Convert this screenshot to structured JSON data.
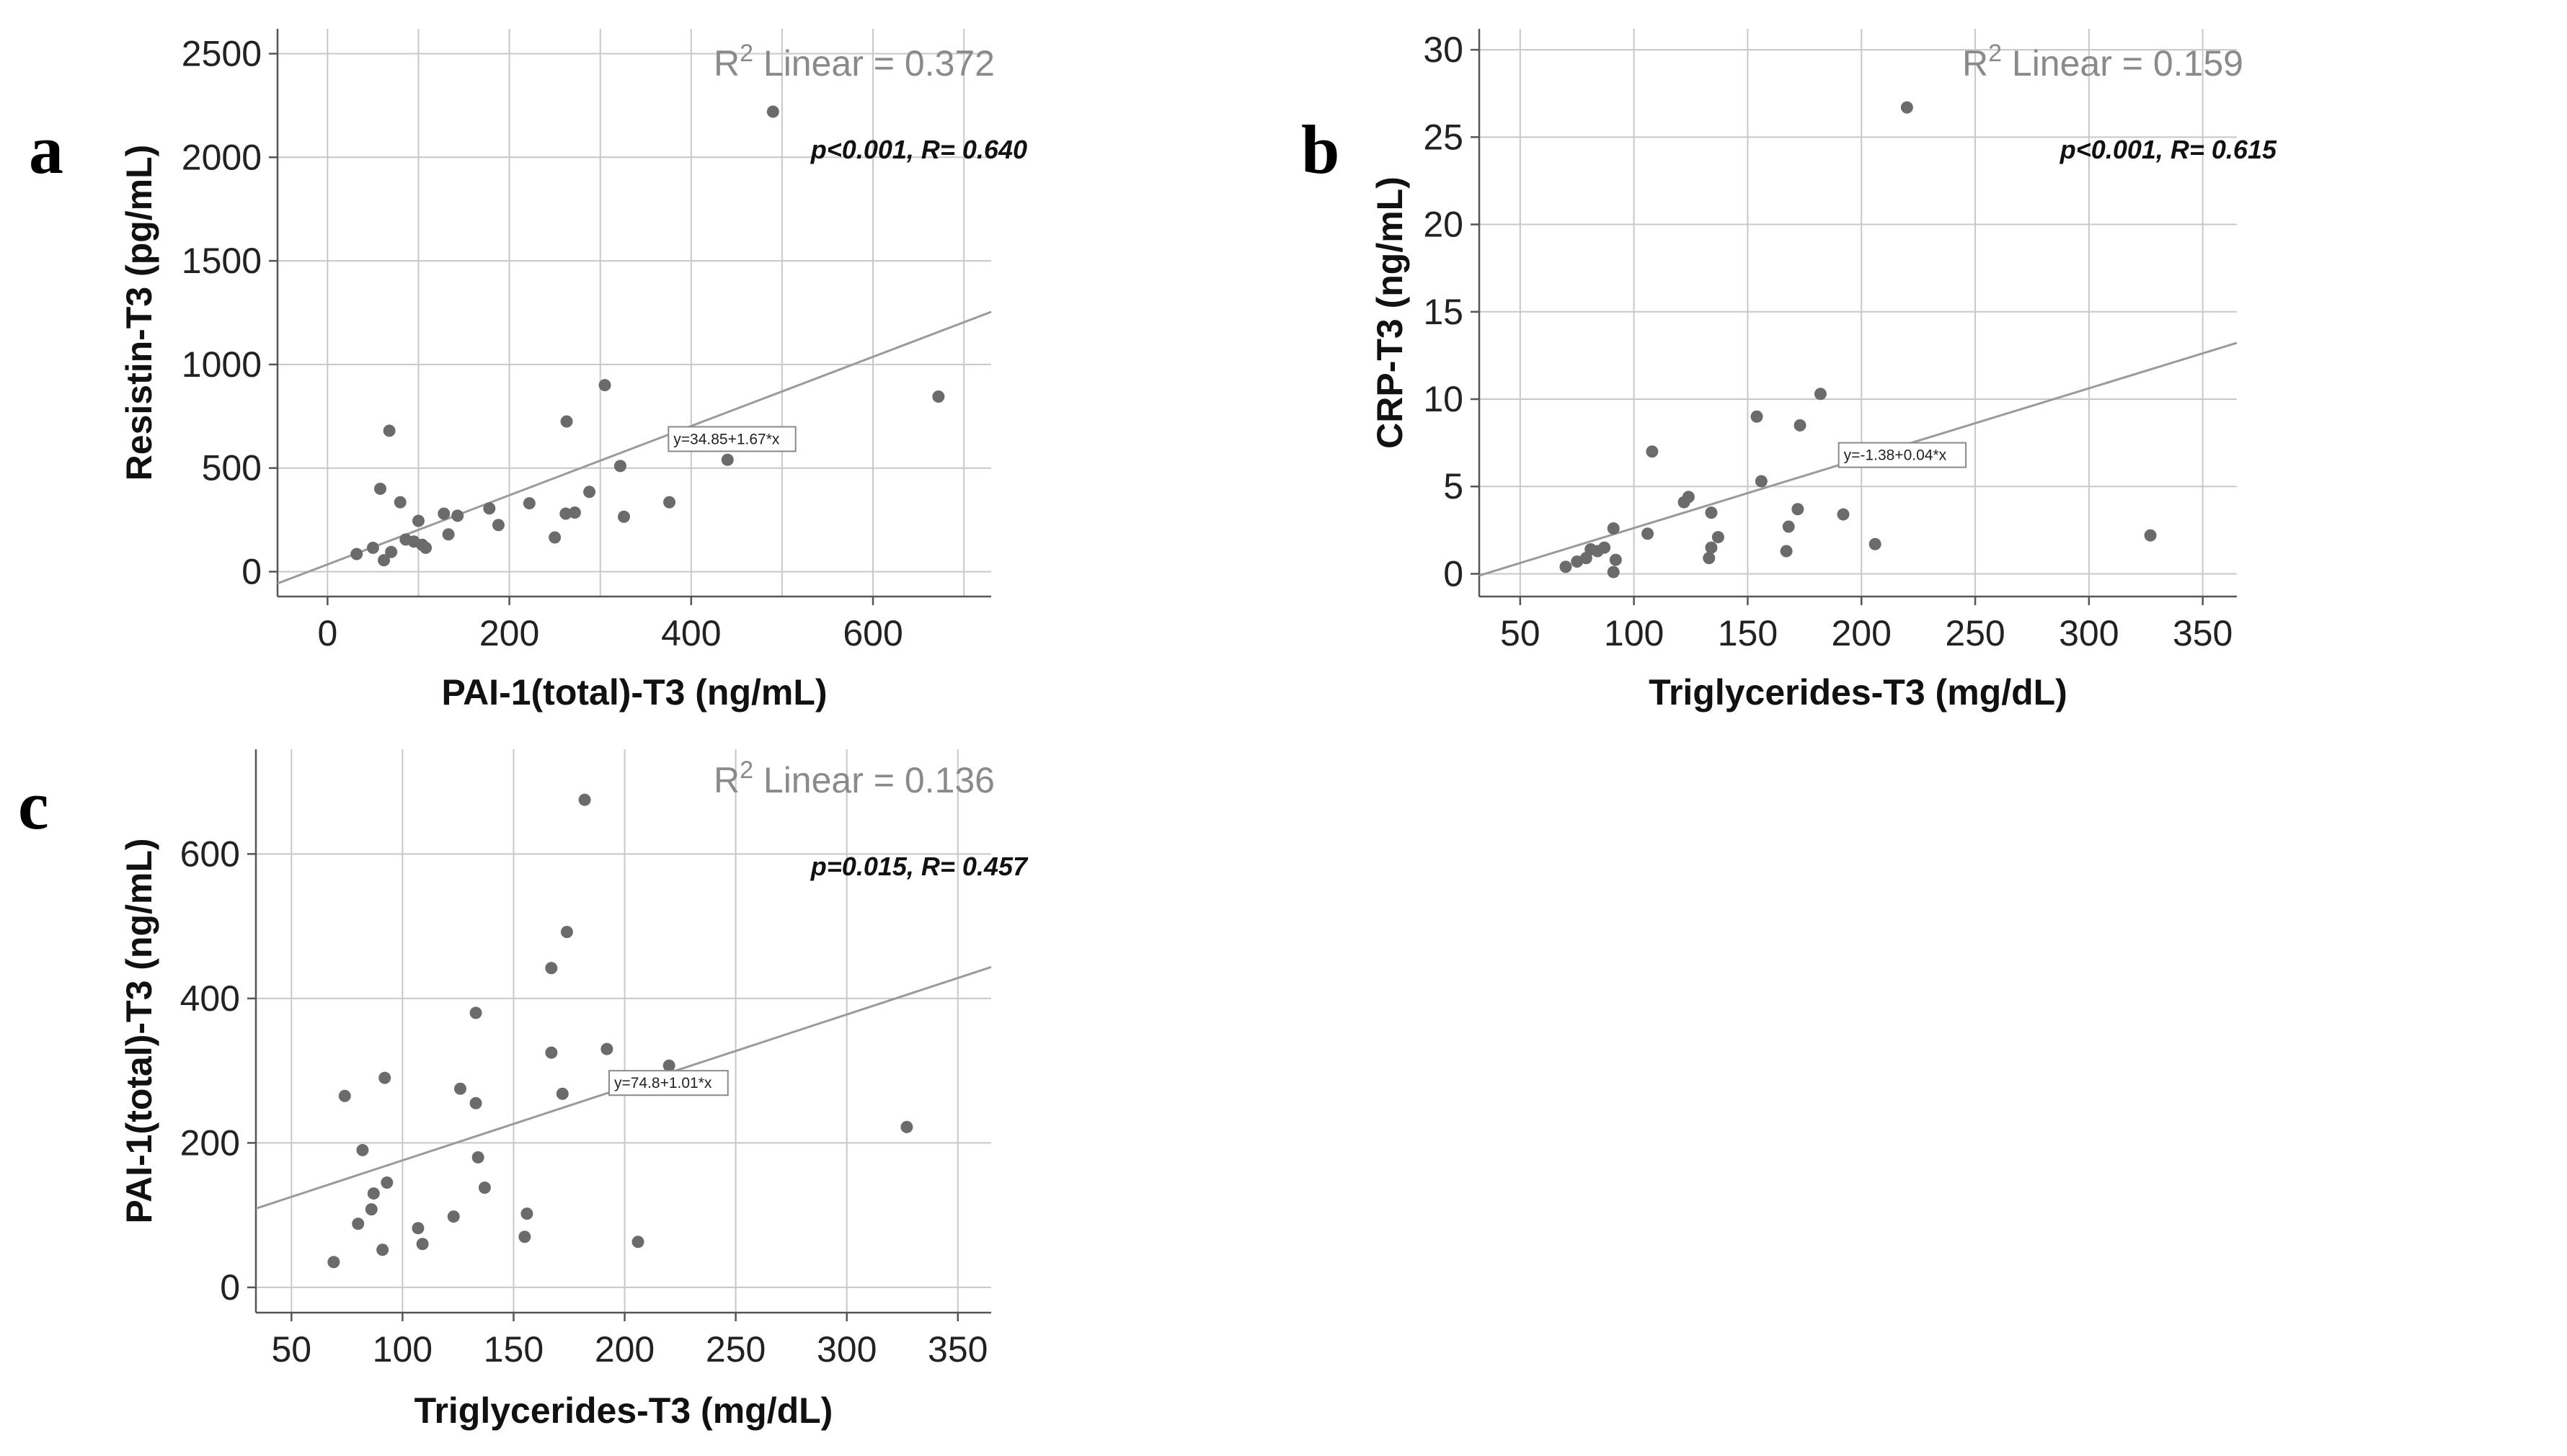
{
  "chart_data": [
    {
      "type": "scatter",
      "panel_label": "a",
      "xlabel": "PAI-1(total)-T3 (ng/mL)",
      "ylabel": "Resistin-T3 (pg/mL)",
      "xlim": [
        -55,
        730
      ],
      "ylim": [
        -120,
        2620
      ],
      "xticks": [
        0,
        200,
        400,
        600
      ],
      "yticks": [
        0,
        500,
        1000,
        1500,
        2000,
        2500
      ],
      "xgrid": [
        0,
        100,
        200,
        300,
        400,
        500,
        600,
        700
      ],
      "ygrid": [
        0,
        500,
        1000,
        1500,
        2000,
        2500
      ],
      "r2_prefix": "R",
      "r2_exp": "2",
      "r2_text": " Linear = 0.372",
      "stats": "p<0.001, R= 0.640",
      "regression": {
        "intercept": 34.85,
        "slope": 1.67,
        "equation": "y=34.85+1.67*x",
        "label_at": [
          375,
          640
        ]
      },
      "points": [
        [
          32,
          85
        ],
        [
          50,
          115
        ],
        [
          58,
          400
        ],
        [
          62,
          55
        ],
        [
          68,
          680
        ],
        [
          70,
          95
        ],
        [
          80,
          335
        ],
        [
          86,
          155
        ],
        [
          95,
          145
        ],
        [
          100,
          245
        ],
        [
          104,
          130
        ],
        [
          108,
          115
        ],
        [
          128,
          280
        ],
        [
          133,
          180
        ],
        [
          143,
          270
        ],
        [
          178,
          305
        ],
        [
          188,
          225
        ],
        [
          222,
          330
        ],
        [
          250,
          165
        ],
        [
          262,
          280
        ],
        [
          263,
          725
        ],
        [
          272,
          285
        ],
        [
          288,
          385
        ],
        [
          305,
          900
        ],
        [
          322,
          510
        ],
        [
          326,
          265
        ],
        [
          376,
          335
        ],
        [
          440,
          540
        ],
        [
          490,
          2220
        ],
        [
          672,
          845
        ]
      ]
    },
    {
      "type": "scatter",
      "panel_label": "b",
      "xlabel": "Triglycerides-T3 (mg/dL)",
      "ylabel": "CRP-T3 (ng/mL)",
      "xlim": [
        32,
        365
      ],
      "ylim": [
        -1.3,
        31.2
      ],
      "xticks": [
        50,
        100,
        150,
        200,
        250,
        300,
        350
      ],
      "yticks": [
        0,
        5,
        10,
        15,
        20,
        25,
        30
      ],
      "xgrid": [
        50,
        100,
        150,
        200,
        250,
        300,
        350
      ],
      "ygrid": [
        0,
        5,
        10,
        15,
        20,
        25,
        30
      ],
      "r2_prefix": "R",
      "r2_exp": "2",
      "r2_text": " Linear = 0.159",
      "stats": "p<0.001, R= 0.615",
      "regression": {
        "intercept": -1.38,
        "slope": 0.04,
        "equation": "y=-1.38+0.04*x",
        "label_at": [
          190,
          6.8
        ]
      },
      "points": [
        [
          70,
          0.4
        ],
        [
          75,
          0.7
        ],
        [
          79,
          0.9
        ],
        [
          81,
          1.4
        ],
        [
          84,
          1.3
        ],
        [
          87,
          1.5
        ],
        [
          91,
          0.1
        ],
        [
          91,
          2.6
        ],
        [
          92,
          0.8
        ],
        [
          106,
          2.3
        ],
        [
          108,
          7.0
        ],
        [
          122,
          4.1
        ],
        [
          124,
          4.4
        ],
        [
          133,
          0.9
        ],
        [
          134,
          1.5
        ],
        [
          134,
          3.5
        ],
        [
          137,
          2.1
        ],
        [
          154,
          9.0
        ],
        [
          156,
          5.3
        ],
        [
          167,
          1.3
        ],
        [
          168,
          2.7
        ],
        [
          172,
          3.7
        ],
        [
          173,
          8.5
        ],
        [
          182,
          10.3
        ],
        [
          192,
          3.4
        ],
        [
          206,
          1.7
        ],
        [
          220,
          26.7
        ],
        [
          327,
          2.2
        ]
      ]
    },
    {
      "type": "scatter",
      "panel_label": "c",
      "xlabel": "Triglycerides-T3 (mg/dL)",
      "ylabel": "PAI-1(total)-T3 (ng/mL)",
      "xlim": [
        34,
        365
      ],
      "ylim": [
        -35,
        745
      ],
      "xticks": [
        50,
        100,
        150,
        200,
        250,
        300,
        350
      ],
      "yticks": [
        0,
        200,
        400,
        600
      ],
      "xgrid": [
        50,
        100,
        150,
        200,
        250,
        300,
        350
      ],
      "ygrid": [
        0,
        200,
        400,
        600
      ],
      "r2_prefix": "R",
      "r2_exp": "2",
      "r2_text": " Linear = 0.136",
      "stats": "p=0.015, R= 0.457",
      "regression": {
        "intercept": 74.8,
        "slope": 1.01,
        "equation": "y=74.8+1.01*x",
        "label_at": [
          193,
          283
        ]
      },
      "points": [
        [
          69,
          35
        ],
        [
          74,
          265
        ],
        [
          80,
          88
        ],
        [
          82,
          190
        ],
        [
          86,
          108
        ],
        [
          87,
          130
        ],
        [
          91,
          52
        ],
        [
          92,
          290
        ],
        [
          93,
          145
        ],
        [
          107,
          82
        ],
        [
          109,
          60
        ],
        [
          123,
          98
        ],
        [
          126,
          275
        ],
        [
          133,
          255
        ],
        [
          133,
          380
        ],
        [
          134,
          180
        ],
        [
          137,
          138
        ],
        [
          155,
          70
        ],
        [
          156,
          102
        ],
        [
          167,
          325
        ],
        [
          167,
          442
        ],
        [
          172,
          268
        ],
        [
          174,
          492
        ],
        [
          182,
          675
        ],
        [
          192,
          330
        ],
        [
          206,
          63
        ],
        [
          220,
          307
        ],
        [
          327,
          222
        ]
      ]
    }
  ]
}
